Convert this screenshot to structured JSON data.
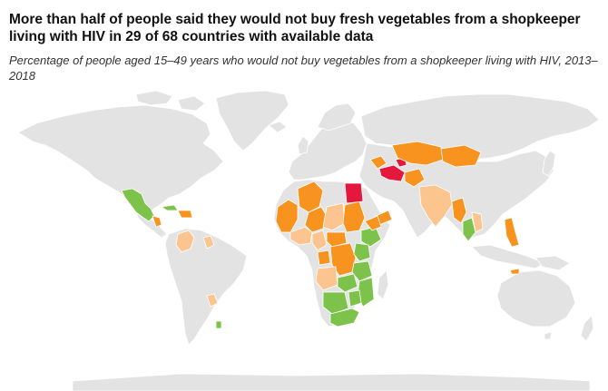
{
  "title": "More than half of people said they would not buy fresh vegetables from a shopkeeper living with HIV in 29 of 68 countries with available data",
  "subtitle": "Percentage of people aged 15–49 years who would not buy vegetables from a shopkeeper living with HIV, 2013–2018",
  "colors": {
    "no_data": "#e3e3e3",
    "green": "#7dc24b",
    "light_orange": "#fcc48e",
    "orange": "#f7931e",
    "red": "#e4173c",
    "background": "#ffffff"
  }
}
